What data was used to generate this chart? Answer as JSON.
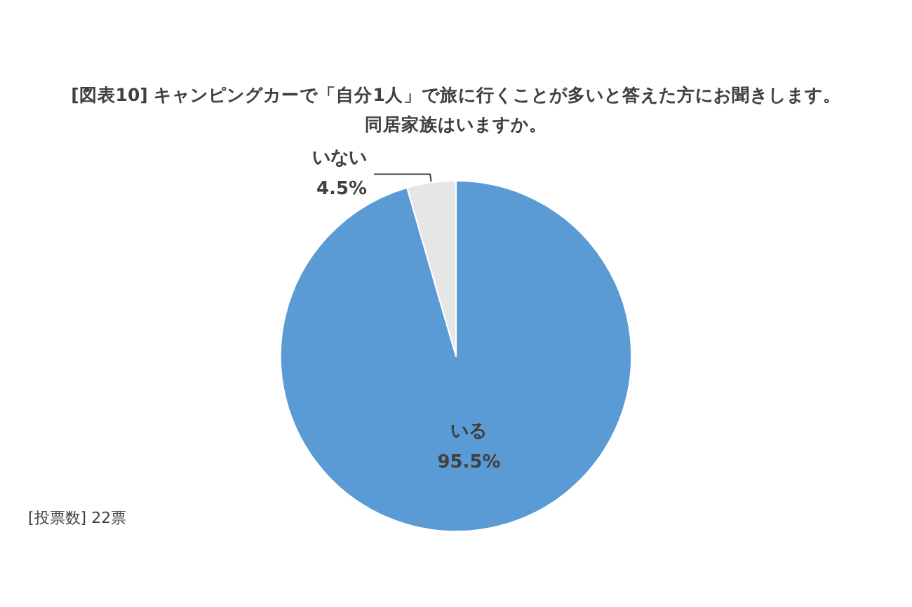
{
  "chart_data": {
    "type": "pie",
    "title": "[図表10] キャンピングカーで「自分1人」で旅に行くことが多いと答えた方にお聞きします。",
    "subtitle": "同居家族はいますか。",
    "categories": [
      "いる",
      "いない"
    ],
    "values": [
      95.5,
      4.5
    ],
    "colors": [
      "#5b9bd5",
      "#e7e6e6"
    ],
    "value_labels": [
      "95.5%",
      "4.5%"
    ],
    "legend": false,
    "annotations": [
      "[投票数] 22票"
    ]
  }
}
